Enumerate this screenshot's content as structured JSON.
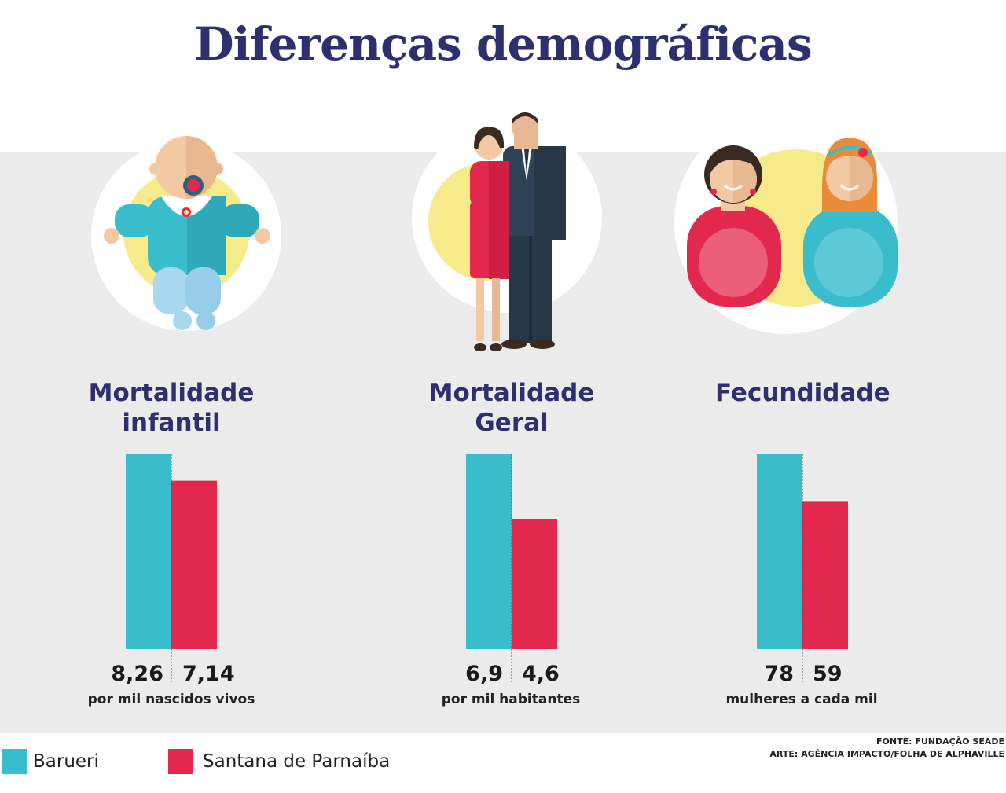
{
  "title": "Diferenças demográficas",
  "colors": {
    "barueri": "#39bccc",
    "santana": "#e3284d",
    "title": "#2e2f6e",
    "band": "#ebebeb"
  },
  "categories": [
    {
      "title_line1": "Mortalidade",
      "title_line2": "infantil",
      "barueri_label": "8,26",
      "santana_label": "7,14",
      "unit": "por mil nascidos vivos",
      "icon": "baby-icon"
    },
    {
      "title_line1": "Mortalidade",
      "title_line2": "Geral",
      "barueri_label": "6,9",
      "santana_label": "4,6",
      "unit": "por mil habitantes",
      "icon": "couple-icon"
    },
    {
      "title_line1": "Fecundidade",
      "title_line2": "",
      "barueri_label": "78",
      "santana_label": "59",
      "unit": "mulheres a cada mil",
      "icon": "pregnant-women-icon"
    }
  ],
  "legend": {
    "barueri": "Barueri",
    "santana": "Santana de Parnaíba"
  },
  "credits": {
    "source": "FONTE: FUNDAÇÃO SEADE",
    "art": "ARTE: AGÊNCIA IMPACTO/FOLHA DE ALPHAVILLE"
  },
  "chart_data": [
    {
      "type": "bar",
      "title": "Mortalidade infantil",
      "categories": [
        "Barueri",
        "Santana de Parnaíba"
      ],
      "values": [
        8.26,
        7.14
      ],
      "unit": "por mil nascidos vivos"
    },
    {
      "type": "bar",
      "title": "Mortalidade Geral",
      "categories": [
        "Barueri",
        "Santana de Parnaíba"
      ],
      "values": [
        6.9,
        4.6
      ],
      "unit": "por mil habitantes"
    },
    {
      "type": "bar",
      "title": "Fecundidade",
      "categories": [
        "Barueri",
        "Santana de Parnaíba"
      ],
      "values": [
        78,
        59
      ],
      "unit": "mulheres a cada mil"
    }
  ]
}
